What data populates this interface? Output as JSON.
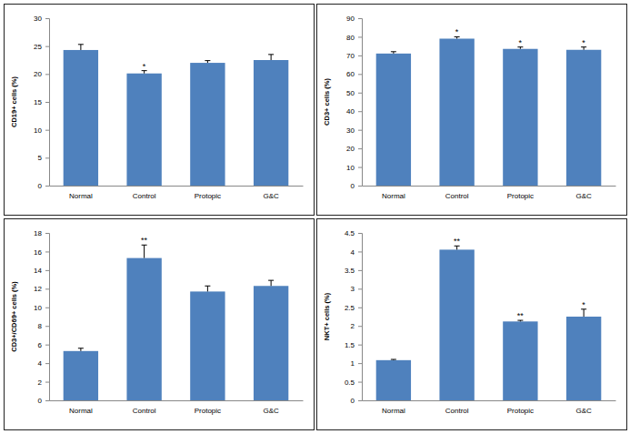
{
  "chart_data": [
    {
      "type": "bar",
      "y_label": "CD19+ cells (%)",
      "categories": [
        "Normal",
        "Control",
        "Protopic",
        "G&C"
      ],
      "values": [
        24.3,
        20.1,
        22.0,
        22.5
      ],
      "errors": [
        1.0,
        0.5,
        0.4,
        1.0
      ],
      "annotations": [
        null,
        "*",
        null,
        null
      ],
      "color": "#4f81bd",
      "ylim": [
        0,
        30
      ],
      "yticks": [
        0,
        5,
        10,
        15,
        20,
        25,
        30
      ],
      "grid": false
    },
    {
      "type": "bar",
      "y_label": "CD3+ cells (%)",
      "categories": [
        "Normal",
        "Control",
        "Protopic",
        "G&C"
      ],
      "values": [
        71.0,
        79.0,
        73.5,
        73.0
      ],
      "errors": [
        1.0,
        1.0,
        1.0,
        1.5
      ],
      "annotations": [
        null,
        "*",
        "*",
        "*"
      ],
      "color": "#4f81bd",
      "ylim": [
        0,
        90
      ],
      "yticks": [
        0,
        10,
        20,
        30,
        40,
        50,
        60,
        70,
        80,
        90
      ],
      "grid": false
    },
    {
      "type": "bar",
      "y_label": "CD3+/CD69+ cells (%)",
      "categories": [
        "Normal",
        "Control",
        "Protopic",
        "G&C"
      ],
      "values": [
        5.3,
        15.3,
        11.7,
        12.3
      ],
      "errors": [
        0.3,
        1.4,
        0.6,
        0.6
      ],
      "annotations": [
        null,
        "**",
        null,
        null
      ],
      "color": "#4f81bd",
      "ylim": [
        0,
        18
      ],
      "yticks": [
        0,
        2,
        4,
        6,
        8,
        10,
        12,
        14,
        16,
        18
      ],
      "grid": false
    },
    {
      "type": "bar",
      "y_label": "NKT+ cells (%)",
      "categories": [
        "Normal",
        "Control",
        "Protopic",
        "G&C"
      ],
      "values": [
        1.08,
        4.05,
        2.12,
        2.25
      ],
      "errors": [
        0.02,
        0.1,
        0.03,
        0.2
      ],
      "annotations": [
        null,
        "**",
        "**",
        "*"
      ],
      "color": "#4f81bd",
      "ylim": [
        0,
        4.5
      ],
      "yticks": [
        0,
        0.5,
        1,
        1.5,
        2,
        2.5,
        3,
        3.5,
        4,
        4.5
      ],
      "grid": false
    }
  ]
}
